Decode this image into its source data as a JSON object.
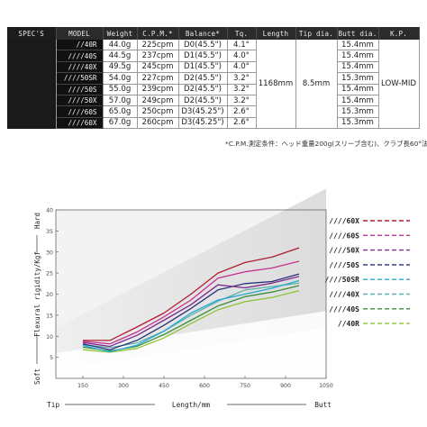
{
  "table": {
    "headers": {
      "specs": "SPEC'S",
      "model": "MODEL",
      "weight": "Weight",
      "cpm": "C.P.M.*",
      "balance": "Balance*",
      "tq": "Tq.",
      "length": "Length",
      "tip": "Tip dia.",
      "butt": "Butt dia.",
      "kp": "K.P."
    },
    "rows": [
      {
        "model": "//40R",
        "weight": "44.0g",
        "cpm": "225cpm",
        "balance": "D0(45.5\")",
        "tq": "4.1°",
        "butt": "15.4mm"
      },
      {
        "model": "////40S",
        "weight": "44.5g",
        "cpm": "237cpm",
        "balance": "D1(45.5\")",
        "tq": "4.0°",
        "butt": "15.4mm"
      },
      {
        "model": "////40X",
        "weight": "49.5g",
        "cpm": "245cpm",
        "balance": "D1(45.5\")",
        "tq": "4.0°",
        "butt": "15.4mm"
      },
      {
        "model": "////50SR",
        "weight": "54.0g",
        "cpm": "227cpm",
        "balance": "D2(45.5\")",
        "tq": "3.2°",
        "butt": "15.3mm"
      },
      {
        "model": "////50S",
        "weight": "55.0g",
        "cpm": "239cpm",
        "balance": "D2(45.5\")",
        "tq": "3.2°",
        "butt": "15.4mm"
      },
      {
        "model": "////50X",
        "weight": "57.0g",
        "cpm": "249cpm",
        "balance": "D2(45.5\")",
        "tq": "3.2°",
        "butt": "15.4mm"
      },
      {
        "model": "////60S",
        "weight": "65.0g",
        "cpm": "250cpm",
        "balance": "D3(45.25\")",
        "tq": "2.6°",
        "butt": "15.3mm"
      },
      {
        "model": "////60X",
        "weight": "67.0g",
        "cpm": "260cpm",
        "balance": "D3(45.25\")",
        "tq": "2.6°",
        "butt": "15.3mm"
      }
    ],
    "length": "1168mm",
    "tip": "8.5mm",
    "kp": "LOW-MID"
  },
  "note": "*C.P.M.測定条件：ヘッド重量200g(スリーブ含む)、クラブ長60°法",
  "chart_data": {
    "type": "line",
    "xlabel": "Length/mm",
    "ylabel": "Flexural rigidity/Kgf",
    "x_end_left": "Tip",
    "x_end_right": "Butt",
    "y_end_bottom": "Soft",
    "y_end_top": "Hard",
    "xlim": [
      50,
      1050
    ],
    "ylim": [
      0,
      40
    ],
    "xticks": [
      "150",
      "300",
      "450",
      "600",
      "750",
      "900",
      "1050"
    ],
    "yticks": [
      "5",
      "10",
      "15",
      "20",
      "25",
      "30",
      "35",
      "40"
    ],
    "grid": false,
    "legend_position": "right",
    "x": [
      150,
      250,
      350,
      450,
      550,
      650,
      750,
      850,
      950
    ],
    "series": [
      {
        "name": "////60X",
        "color": "#b01c2e",
        "values": [
          9.0,
          9.0,
          12.2,
          15.5,
          20.0,
          25.0,
          27.5,
          28.8,
          31.0
        ]
      },
      {
        "name": "////60S",
        "color": "#c2328f",
        "values": [
          8.8,
          8.2,
          11.0,
          14.6,
          18.6,
          23.8,
          25.3,
          26.2,
          27.8
        ]
      },
      {
        "name": "////50X",
        "color": "#7b2a8d",
        "values": [
          8.5,
          7.6,
          10.2,
          13.8,
          17.5,
          22.2,
          21.5,
          22.6,
          24.2
        ]
      },
      {
        "name": "////50S",
        "color": "#28307a",
        "values": [
          8.2,
          6.8,
          9.0,
          12.6,
          16.6,
          21.0,
          22.5,
          23.0,
          24.8
        ]
      },
      {
        "name": "////50SR",
        "color": "#28a7d2",
        "values": [
          7.8,
          6.3,
          7.9,
          11.2,
          15.5,
          18.6,
          20.0,
          21.4,
          23.2
        ]
      },
      {
        "name": "////40X",
        "color": "#5fb3a8",
        "values": [
          8.0,
          7.3,
          8.4,
          11.2,
          15.0,
          18.3,
          21.0,
          21.8,
          22.6
        ]
      },
      {
        "name": "////40S",
        "color": "#3e8d3e",
        "values": [
          7.4,
          6.5,
          7.6,
          10.4,
          13.8,
          17.2,
          19.4,
          20.5,
          22.0
        ]
      },
      {
        "name": "//40R",
        "color": "#8dc43a",
        "values": [
          6.8,
          6.2,
          7.1,
          9.6,
          13.0,
          16.3,
          18.2,
          19.2,
          20.8
        ]
      }
    ]
  }
}
